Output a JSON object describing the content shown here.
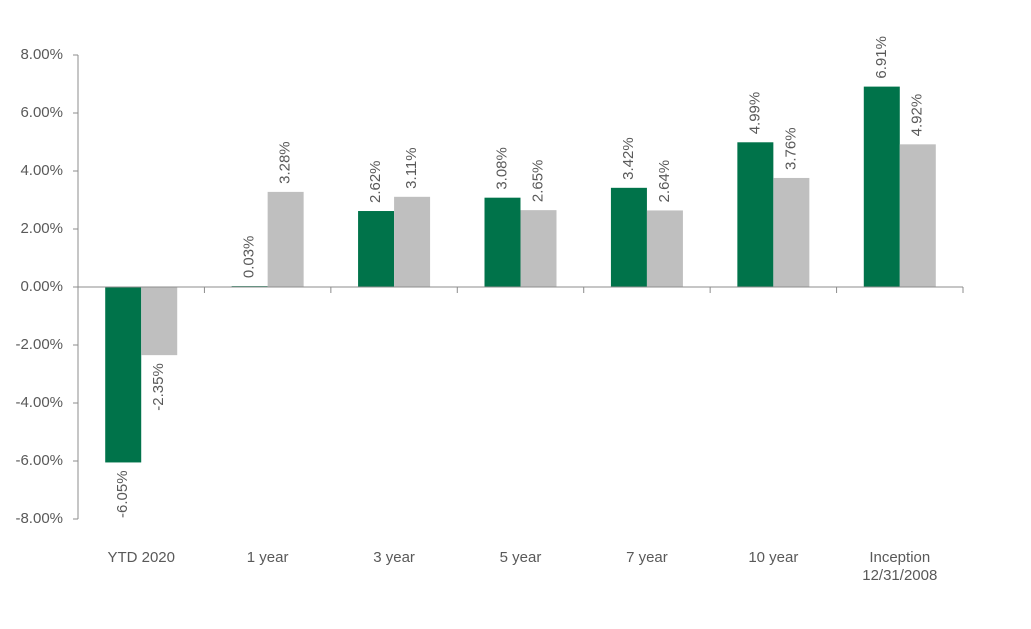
{
  "chart_data": {
    "type": "bar",
    "categories": [
      "YTD 2020",
      "1 year",
      "3 year",
      "5 year",
      "7 year",
      "10 year",
      "Inception\n12/31/2008"
    ],
    "series": [
      {
        "color": "#00734a",
        "values": [
          -6.05,
          0.03,
          2.62,
          3.08,
          3.42,
          4.99,
          6.91
        ],
        "value_labels": [
          "-6.05%",
          "0.03%",
          "2.62%",
          "3.08%",
          "3.42%",
          "4.99%",
          "6.91%"
        ]
      },
      {
        "color": "#bfbfbf",
        "values": [
          -2.35,
          3.28,
          3.11,
          2.65,
          2.64,
          3.76,
          4.92
        ],
        "value_labels": [
          "-2.35%",
          "3.28%",
          "3.11%",
          "2.65%",
          "2.64%",
          "3.76%",
          "4.92%"
        ]
      }
    ],
    "ylim": [
      -8,
      8
    ],
    "yticks": [
      {
        "value": -8,
        "label": "-8.00%"
      },
      {
        "value": -6,
        "label": "-6.00%"
      },
      {
        "value": -4,
        "label": "-4.00%"
      },
      {
        "value": -2,
        "label": "-2.00%"
      },
      {
        "value": 0,
        "label": "0.00%"
      },
      {
        "value": 2,
        "label": "2.00%"
      },
      {
        "value": 4,
        "label": "4.00%"
      },
      {
        "value": 6,
        "label": "6.00%"
      },
      {
        "value": 8,
        "label": "8.00%"
      }
    ],
    "grid": false
  }
}
